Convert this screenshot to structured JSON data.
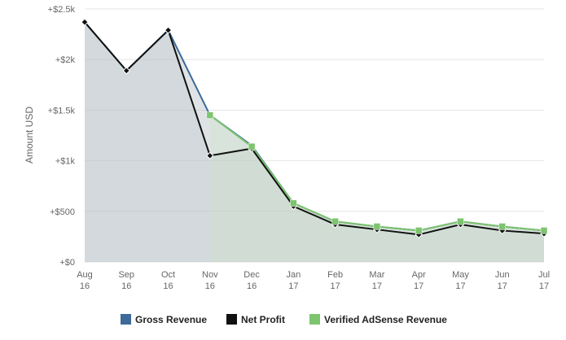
{
  "chart_data": {
    "type": "line",
    "ylabel": "Amount USD",
    "ylim": [
      0,
      2500
    ],
    "y_ticks": [
      0,
      500,
      1000,
      1500,
      2000,
      2500
    ],
    "y_tick_labels": [
      "+$0",
      "+$500",
      "+$1k",
      "+$1.5k",
      "+$2k",
      "+$2.5k"
    ],
    "categories": [
      {
        "month": "Aug",
        "year": "16"
      },
      {
        "month": "Sep",
        "year": "16"
      },
      {
        "month": "Oct",
        "year": "16"
      },
      {
        "month": "Nov",
        "year": "16"
      },
      {
        "month": "Dec",
        "year": "16"
      },
      {
        "month": "Jan",
        "year": "17"
      },
      {
        "month": "Feb",
        "year": "17"
      },
      {
        "month": "Mar",
        "year": "17"
      },
      {
        "month": "Apr",
        "year": "17"
      },
      {
        "month": "May",
        "year": "17"
      },
      {
        "month": "Jun",
        "year": "17"
      },
      {
        "month": "Jul",
        "year": "17"
      }
    ],
    "grid": true,
    "legend_position": "bottom-center",
    "series": [
      {
        "name": "Gross Revenue",
        "color": "#3d6a9a",
        "marker": "none",
        "values": [
          2370,
          1890,
          2290,
          1450,
          1150,
          580,
          400,
          350,
          310,
          400,
          350,
          310
        ]
      },
      {
        "name": "Net Profit",
        "color": "#111111",
        "marker": "diamond",
        "values": [
          2370,
          1890,
          2290,
          1050,
          1120,
          550,
          370,
          320,
          270,
          370,
          310,
          280
        ]
      },
      {
        "name": "Verified AdSense Revenue",
        "color": "#7dc46e",
        "marker": "square",
        "values": [
          null,
          null,
          null,
          1450,
          1140,
          580,
          400,
          350,
          310,
          400,
          350,
          310
        ]
      }
    ]
  }
}
